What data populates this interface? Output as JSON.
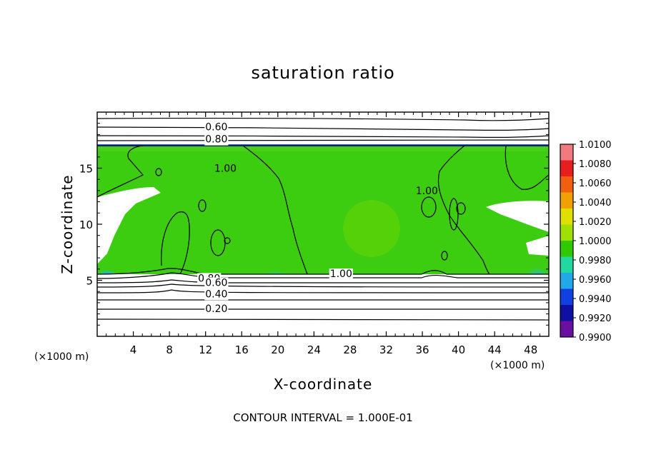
{
  "chart_data": {
    "type": "heatmap",
    "title": "saturation ratio",
    "xlabel": "X-coordinate",
    "ylabel": "Z-coordinate",
    "x_unit_label": "(×1000 m)",
    "note": "CONTOUR INTERVAL = 1.000E-01",
    "xlim": [
      0,
      50
    ],
    "ylim": [
      0,
      20
    ],
    "x_ticks": [
      4,
      8,
      12,
      16,
      20,
      24,
      28,
      32,
      36,
      40,
      44,
      48
    ],
    "y_ticks": [
      5,
      10,
      15
    ],
    "colorbar": {
      "labels": [
        "1.0100",
        "1.0080",
        "1.0060",
        "1.0040",
        "1.0020",
        "1.0000",
        "0.9980",
        "0.9960",
        "0.9940",
        "0.9920",
        "0.9900"
      ],
      "colors": [
        "#f07a80",
        "#e81e1e",
        "#f06010",
        "#f0a000",
        "#e0e000",
        "#a0e000",
        "#30c800",
        "#20d8a0",
        "#20a8e8",
        "#1040e0",
        "#1010a0",
        "#6a10a0"
      ]
    },
    "contour_labels": [
      {
        "text": "0.60",
        "x": 13.2,
        "z": 18.7
      },
      {
        "text": "0.80",
        "x": 13.2,
        "z": 17.6
      },
      {
        "text": "1.00",
        "x": 14.2,
        "z": 15.0
      },
      {
        "text": "1.00",
        "x": 27.0,
        "z": 5.6
      },
      {
        "text": "1.00",
        "x": 36.5,
        "z": 13.0
      },
      {
        "text": "0.80",
        "x": 12.4,
        "z": 5.2
      },
      {
        "text": "0.60",
        "x": 13.2,
        "z": 4.8
      },
      {
        "text": "0.40",
        "x": 13.2,
        "z": 3.8
      },
      {
        "text": "0.20",
        "x": 13.2,
        "z": 2.5
      }
    ],
    "field_description_values": {
      "domain_moist_layer_z": [
        5.5,
        17.0
      ],
      "dominant_value": 1.0
    }
  }
}
